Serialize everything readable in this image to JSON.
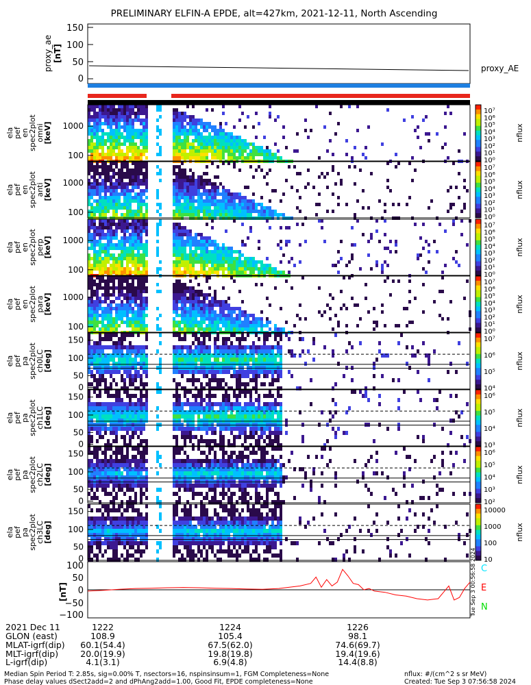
{
  "title": "PRELIMINARY ELFIN-A EPDE, alt=427km, 2021-12-11, North Ascending",
  "colors": {
    "red_bar": "#e8261c",
    "blue_bar": "#1e7fe0",
    "trace_red": "#ff0000",
    "c_label": "#00e5ff",
    "e_label": "#ff0000",
    "n_label": "#00dd00"
  },
  "chart_data": [
    {
      "type": "line",
      "panel": "proxy_ae",
      "ylabel": "proxy_ae\n[nT]",
      "legend": "proxy_AE",
      "yticks": [
        "150",
        "100",
        "50",
        "0"
      ],
      "ylim": [
        -10,
        155
      ],
      "x": [
        "12:20.6",
        "12:27.8"
      ],
      "y": [
        38,
        23
      ]
    },
    {
      "type": "heatmap",
      "panel": "ela_pef_en_spec2plot_omni",
      "ylabel": [
        "ela",
        "pef",
        "en",
        "spec2plot",
        "omni",
        "[keV]"
      ],
      "yticks": [
        "1000",
        "100"
      ],
      "yscale": "log",
      "colorbar": {
        "label": "nflux",
        "ticks": [
          "10⁷",
          "10⁶",
          "10⁵",
          "10⁴",
          "10³",
          "10²",
          "10¹",
          "10⁰"
        ]
      }
    },
    {
      "type": "heatmap",
      "panel": "ela_pef_en_spec2plot_anti",
      "ylabel": [
        "ela",
        "pef",
        "en",
        "spec2plot",
        "anti",
        "[keV]"
      ],
      "yticks": [
        "1000",
        "100"
      ],
      "yscale": "log",
      "colorbar": {
        "label": "nflux",
        "ticks": [
          "10⁷",
          "10⁶",
          "10⁵",
          "10⁴",
          "10³",
          "10²",
          "10¹",
          "10⁰"
        ]
      }
    },
    {
      "type": "heatmap",
      "panel": "ela_pef_en_spec2plot_perp",
      "ylabel": [
        "ela",
        "pef",
        "en",
        "spec2plot",
        "perp",
        "[keV]"
      ],
      "yticks": [
        "1000",
        "100"
      ],
      "yscale": "log",
      "colorbar": {
        "label": "nflux",
        "ticks": [
          "10⁷",
          "10⁶",
          "10⁵",
          "10⁴",
          "10³",
          "10²",
          "10¹",
          "10⁰"
        ]
      }
    },
    {
      "type": "heatmap",
      "panel": "ela_pef_en_spec2plot_para",
      "ylabel": [
        "ela",
        "pef",
        "en",
        "spec2plot",
        "para",
        "[keV]"
      ],
      "yticks": [
        "1000",
        "100"
      ],
      "yscale": "log",
      "colorbar": {
        "label": "nflux",
        "ticks": [
          "10⁷",
          "10⁶",
          "10⁵",
          "10⁴",
          "10³",
          "10²",
          "10¹",
          "10⁰"
        ]
      }
    },
    {
      "type": "heatmap",
      "panel": "ela_pef_pa_spec2plot_ch0LC",
      "ylabel": [
        "ela",
        "pef",
        "pa",
        "spec2plot",
        "ch0LC",
        "[deg]"
      ],
      "yticks": [
        "150",
        "100",
        "50",
        "0"
      ],
      "colorbar": {
        "label": "nflux",
        "ticks": [
          "10⁷",
          "10⁶",
          "10⁵",
          "10⁴"
        ]
      }
    },
    {
      "type": "heatmap",
      "panel": "ela_pef_pa_spec2plot_ch1LC",
      "ylabel": [
        "ela",
        "pef",
        "pa",
        "spec2plot",
        "ch1LC",
        "[deg]"
      ],
      "yticks": [
        "150",
        "100",
        "50",
        "0"
      ],
      "colorbar": {
        "label": "nflux",
        "ticks": [
          "10⁶",
          "10⁵",
          "10⁴",
          "10³"
        ]
      }
    },
    {
      "type": "heatmap",
      "panel": "ela_pef_pa_spec2plot_ch2LC",
      "ylabel": [
        "ela",
        "pef",
        "pa",
        "spec2plot",
        "ch2LC",
        "[deg]"
      ],
      "yticks": [
        "150",
        "100",
        "50",
        "0"
      ],
      "colorbar": {
        "label": "nflux",
        "ticks": [
          "10⁶",
          "10⁵",
          "10⁴",
          "10³",
          "10²"
        ]
      }
    },
    {
      "type": "heatmap",
      "panel": "ela_pef_pa_spec2plot_ch3LC",
      "ylabel": [
        "ela",
        "pef",
        "pa",
        "spec2plot",
        "ch3LC",
        "[deg]"
      ],
      "yticks": [
        "150",
        "100",
        "50",
        "0"
      ],
      "colorbar": {
        "label": "nflux",
        "ticks": [
          "10000",
          "1000",
          "100",
          "10"
        ]
      }
    },
    {
      "type": "line",
      "panel": "dB_nT",
      "ylabel": "[nT]",
      "yticks": [
        "100",
        "50",
        "0",
        "−50",
        "−100"
      ],
      "ylim": [
        -110,
        110
      ],
      "legend": [
        "C",
        "E",
        "N"
      ],
      "x_minutes": [
        20.6,
        20.9,
        21.2,
        21.5,
        21.8,
        22.1,
        22.4,
        22.7,
        23.0,
        23.3,
        23.6,
        23.9,
        24.2,
        24.4,
        24.6,
        24.8,
        24.9,
        25.0,
        25.1,
        25.2,
        25.3,
        25.4,
        25.5,
        25.6,
        25.7,
        25.8,
        25.9,
        26.0,
        26.2,
        26.4,
        26.6,
        26.8,
        27.0,
        27.2,
        27.3,
        27.4,
        27.5,
        27.6,
        27.7,
        27.8
      ],
      "y": [
        -5,
        -2,
        2,
        5,
        6,
        8,
        9,
        8,
        6,
        5,
        3,
        2,
        5,
        10,
        15,
        25,
        50,
        10,
        40,
        15,
        30,
        80,
        55,
        25,
        20,
        0,
        5,
        -5,
        -10,
        -20,
        -25,
        -35,
        -40,
        -35,
        -10,
        15,
        -40,
        -30,
        5,
        30
      ]
    }
  ],
  "time_axis": {
    "date": "2021 Dec 11",
    "ticks": [
      "1222",
      "1224",
      "1226"
    ],
    "rows": [
      {
        "label": "GLON (east)",
        "values": [
          "108.9",
          "105.4",
          "98.1"
        ]
      },
      {
        "label": "MLAT-igrf(dip)",
        "values": [
          "60.1(54.4)",
          "67.5(62.0)",
          "74.6(69.7)"
        ]
      },
      {
        "label": "MLT-igrf(dip)",
        "values": [
          "20.0(19.9)",
          "19.8(19.8)",
          "19.4(19.6)"
        ]
      },
      {
        "label": "L-igrf(dip)",
        "values": [
          "4.1(3.1)",
          "6.9(4.8)",
          "14.4(8.8)"
        ]
      }
    ]
  },
  "footer": {
    "line1": "Median Spin Period T: 2.85s, sig=0.00% T, nsectors=16, nspinsinsum=1, FGM Completeness=None",
    "line2": "Phase delay values dSect2add=2 and dPhAng2add=1.00, Good Fit, EPDE completeness=None",
    "units": "nflux: #/(cm^2 s sr MeV)",
    "created": "Created: Tue Sep  3 07:56:58 2024",
    "side_stamp": "Tue Sep  3 00:56:58 2024"
  }
}
